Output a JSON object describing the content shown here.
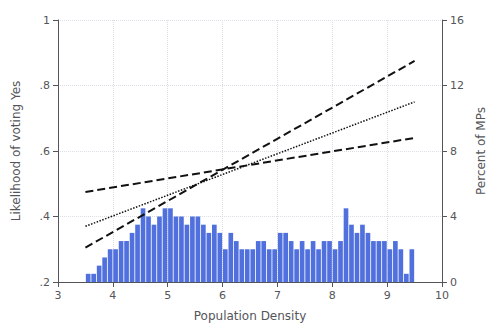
{
  "chart_data": {
    "type": "bar",
    "xlabel": "Population Density",
    "ylabel": "Likelihood of voting Yes",
    "y2label": "Percent of MPs",
    "xlim": [
      3,
      10
    ],
    "xticks": [
      3,
      4,
      5,
      6,
      7,
      8,
      9,
      10
    ],
    "ylim": [
      0.2,
      1.0
    ],
    "yticks": [
      {
        "value": 0.2,
        "label": ".2"
      },
      {
        "value": 0.4,
        "label": ".4"
      },
      {
        "value": 0.6,
        "label": ".6"
      },
      {
        "value": 0.8,
        "label": ".8"
      },
      1
    ],
    "y2lim": [
      0,
      16
    ],
    "y2ticks": [
      0,
      4,
      8,
      12,
      16
    ],
    "grid": true,
    "series": [
      {
        "type": "bar",
        "axis": "y2",
        "x": [
          3.55,
          3.65,
          3.75,
          3.85,
          3.95,
          4.05,
          4.15,
          4.25,
          4.35,
          4.45,
          4.55,
          4.65,
          4.75,
          4.85,
          4.95,
          5.05,
          5.15,
          5.25,
          5.35,
          5.45,
          5.55,
          5.65,
          5.75,
          5.85,
          5.95,
          6.05,
          6.15,
          6.25,
          6.35,
          6.45,
          6.55,
          6.65,
          6.75,
          6.85,
          6.95,
          7.05,
          7.15,
          7.25,
          7.35,
          7.45,
          7.55,
          7.65,
          7.75,
          7.85,
          7.95,
          8.05,
          8.15,
          8.25,
          8.35,
          8.45,
          8.55,
          8.65,
          8.75,
          8.85,
          8.95,
          9.05,
          9.15,
          9.25,
          9.35,
          9.45
        ],
        "values": [
          0.5,
          0.5,
          1.0,
          1.5,
          2.0,
          2.0,
          2.5,
          2.5,
          3.0,
          3.5,
          4.5,
          4.0,
          3.5,
          4.0,
          4.5,
          4.5,
          4.0,
          4.0,
          3.5,
          4.0,
          4.0,
          3.5,
          3.0,
          3.5,
          3.0,
          2.0,
          3.0,
          2.5,
          2.0,
          2.0,
          2.0,
          2.5,
          2.5,
          2.0,
          2.0,
          3.0,
          3.0,
          2.5,
          2.0,
          2.5,
          2.0,
          2.5,
          2.0,
          2.5,
          2.5,
          2.0,
          2.5,
          4.5,
          3.5,
          3.0,
          3.5,
          3.0,
          2.5,
          2.5,
          2.5,
          2.0,
          2.5,
          2.0,
          0.5,
          2.0
        ]
      },
      {
        "type": "line",
        "line_style": "dashed",
        "color": "#111111",
        "x": [
          3.5,
          9.5
        ],
        "values": [
          0.305,
          0.875
        ]
      },
      {
        "type": "line",
        "line_style": "dashed",
        "color": "#111111",
        "x": [
          3.5,
          9.5
        ],
        "values": [
          0.475,
          0.64
        ]
      },
      {
        "type": "line",
        "line_style": "dotted",
        "color": "#111111",
        "x": [
          3.5,
          9.5
        ],
        "values": [
          0.37,
          0.75
        ]
      }
    ]
  }
}
